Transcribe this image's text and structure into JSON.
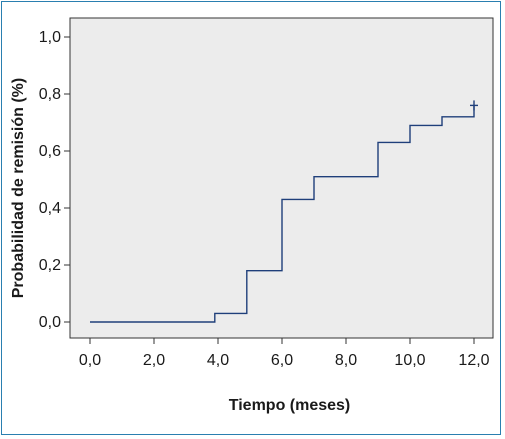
{
  "chart_data": {
    "type": "line",
    "subtype": "step",
    "title": "",
    "xlabel": "Tiempo (meses)",
    "ylabel": "Probabilidad de remisión (%)",
    "xlim": [
      0,
      12
    ],
    "ylim": [
      0,
      1
    ],
    "x_ticks": [
      0,
      2,
      4,
      6,
      8,
      10,
      12
    ],
    "x_tick_labels": [
      "0,0",
      "2,0",
      "4,0",
      "6,0",
      "8,0",
      "10,0",
      "12,0"
    ],
    "y_ticks": [
      0,
      0.2,
      0.4,
      0.6,
      0.8,
      1.0
    ],
    "y_tick_labels": [
      "0,0",
      "0,2",
      "0,4",
      "0,6",
      "0,8",
      "1,0"
    ],
    "grid": false,
    "series": [
      {
        "x": [
          0,
          3.9,
          3.9,
          4.9,
          4.9,
          6.0,
          6.0,
          7.0,
          7.0,
          9.0,
          9.0,
          10.0,
          10.0,
          11.0,
          11.0,
          12.0,
          12.0
        ],
        "y": [
          0,
          0,
          0.03,
          0.03,
          0.18,
          0.18,
          0.43,
          0.43,
          0.51,
          0.51,
          0.63,
          0.63,
          0.69,
          0.69,
          0.72,
          0.72,
          0.76
        ],
        "censored": [
          {
            "x": 12.0,
            "y": 0.76
          }
        ]
      }
    ],
    "colors": {
      "plot_background": "#ececec",
      "line": "#1f3f7a",
      "frame": "#2a7fb0"
    }
  }
}
